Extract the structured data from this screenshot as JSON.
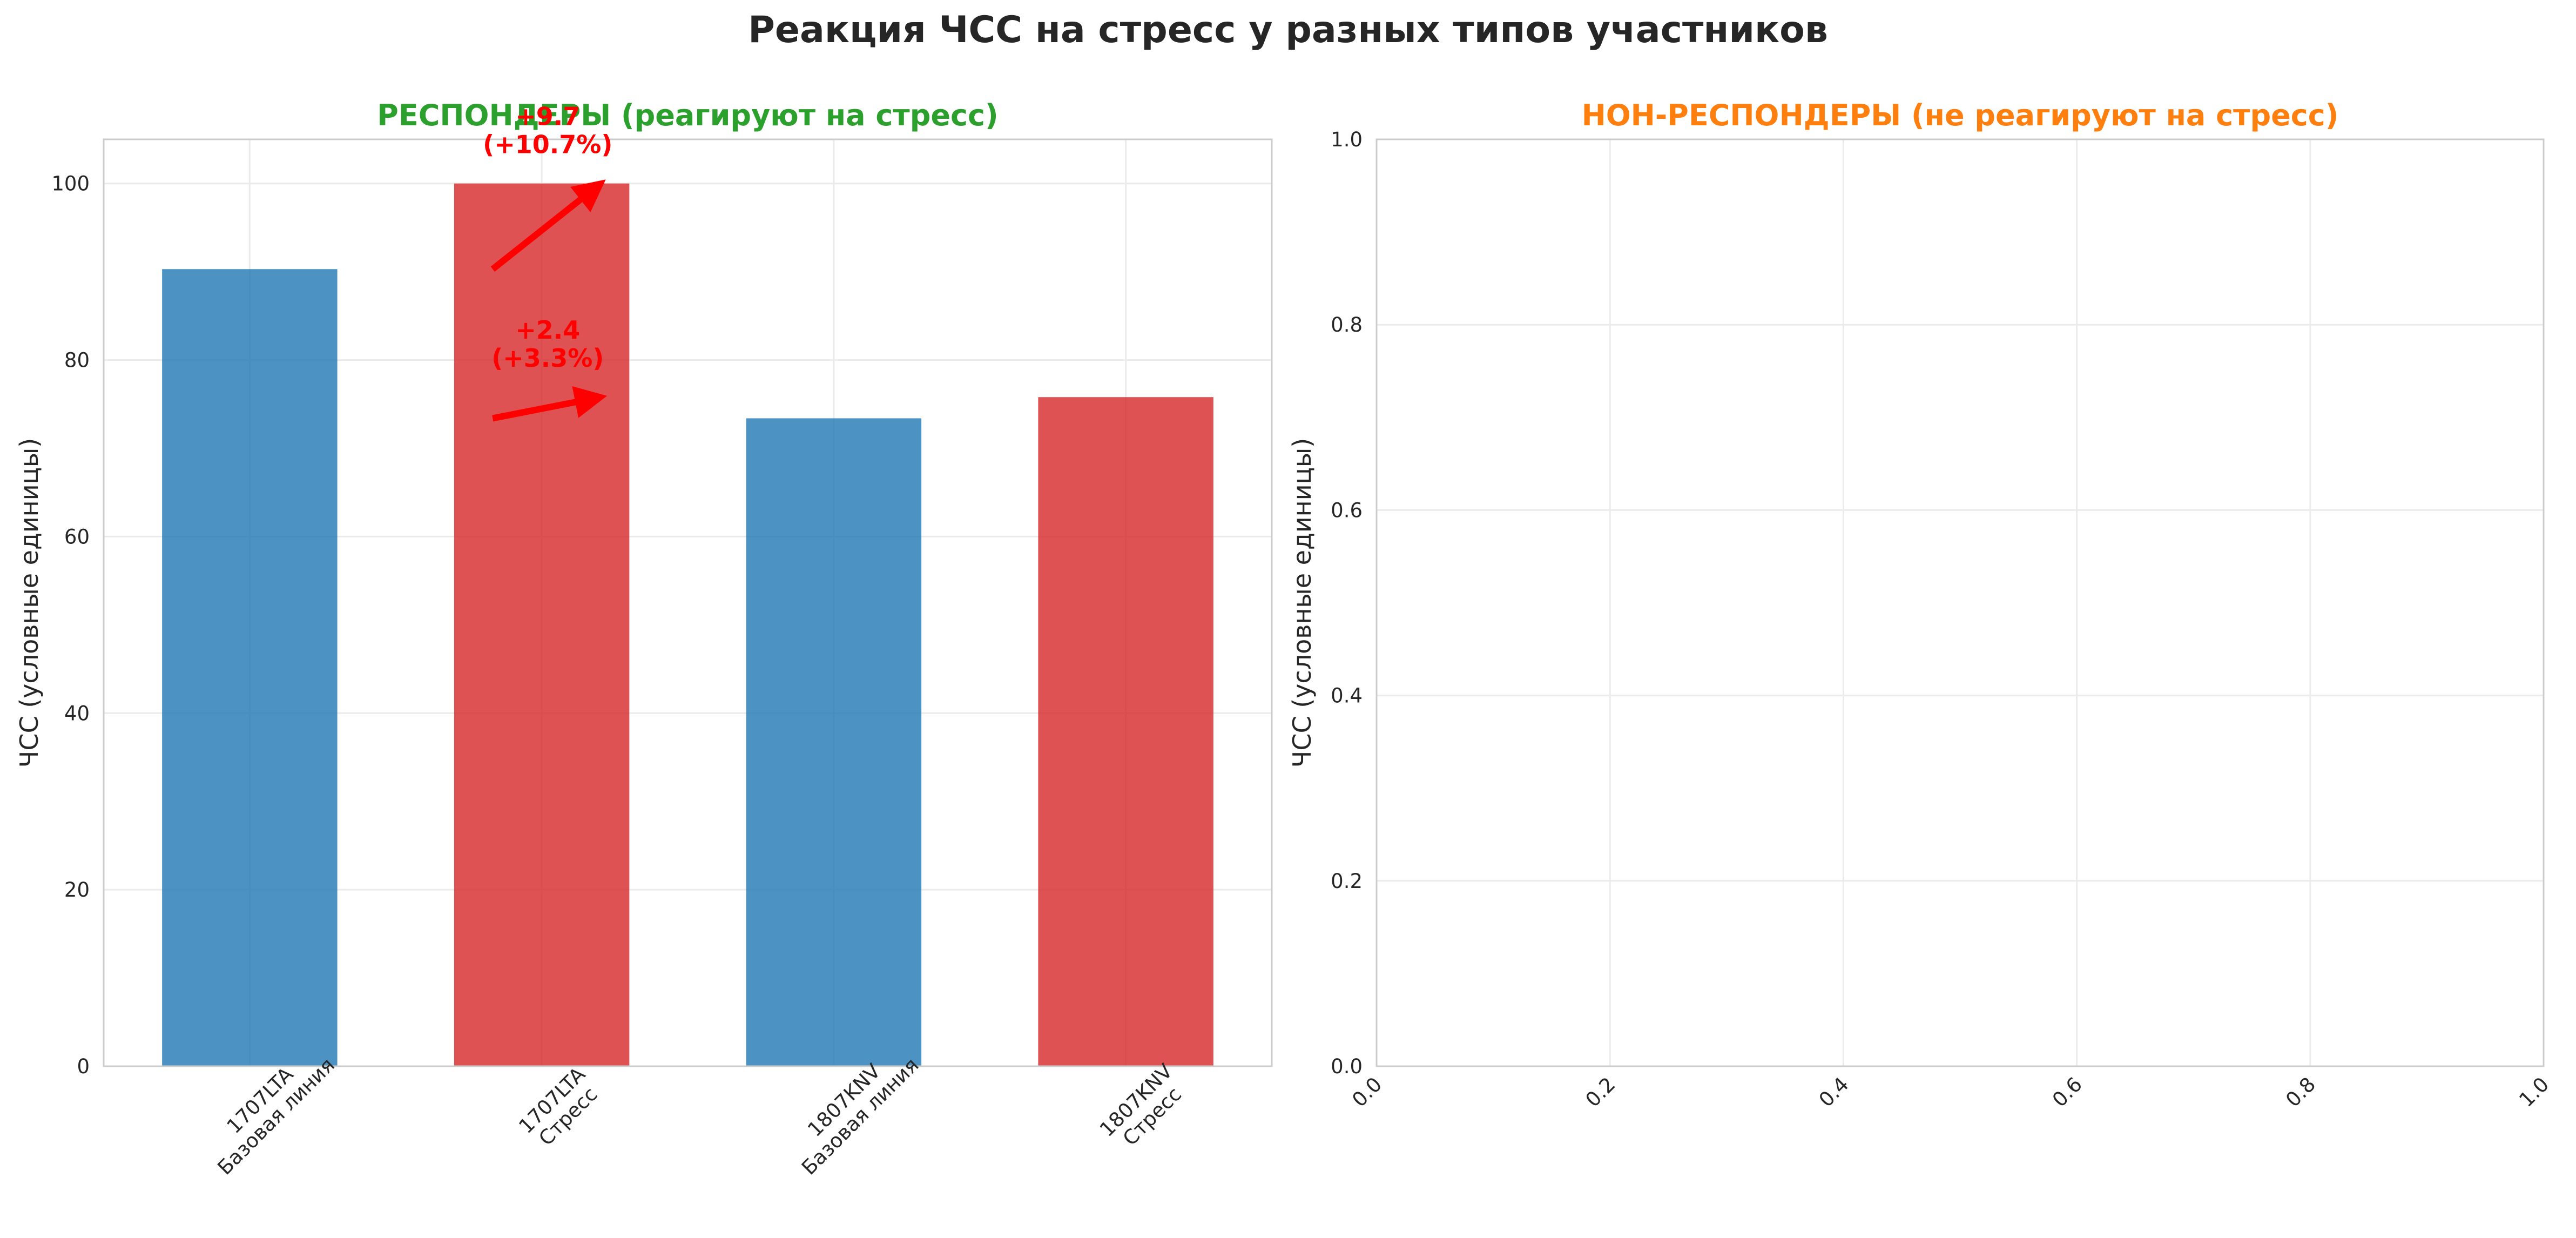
{
  "suptitle": "Реакция ЧСС на стресс у разных типов участников",
  "chart_data": [
    {
      "type": "bar",
      "title": "РЕСПОНДЕРЫ (реагируют на стресс)",
      "title_color": "#2ca02c",
      "xlabel": "",
      "ylabel": "ЧСС (условные единицы)",
      "ylim": [
        0,
        105
      ],
      "yticks": [
        0,
        20,
        40,
        60,
        80,
        100
      ],
      "grid": true,
      "categories": [
        [
          "1707LTA",
          "Базовая линия"
        ],
        [
          "1707LTA",
          "Стресс"
        ],
        [
          "1807KNV",
          "Базовая линия"
        ],
        [
          "1807KNV",
          "Стресс"
        ]
      ],
      "values": [
        90.3,
        100.0,
        73.4,
        75.8
      ],
      "bar_colors": [
        "#1f77b4",
        "#d62728",
        "#1f77b4",
        "#d62728"
      ],
      "annotations": [
        {
          "from_category": 0,
          "to_category": 1,
          "from_value": 90.3,
          "to_value": 100.0,
          "text": [
            "+9.7",
            "(+10.7%)"
          ],
          "color": "#ff0000"
        },
        {
          "from_category": 2,
          "to_category": 3,
          "from_value": 73.4,
          "to_value": 75.8,
          "text": [
            "+2.4",
            "(+3.3%)"
          ],
          "color": "#ff0000"
        }
      ]
    },
    {
      "type": "bar",
      "title": "НОН-РЕСПОНДЕРЫ (не реагируют на стресс)",
      "title_color": "#ff7f0e",
      "xlabel": "",
      "ylabel": "ЧСС (условные единицы)",
      "xlim": [
        0,
        1
      ],
      "ylim": [
        0,
        1
      ],
      "xticks": [
        "0.0",
        "0.2",
        "0.4",
        "0.6",
        "0.8",
        "1.0"
      ],
      "yticks": [
        "0.0",
        "0.2",
        "0.4",
        "0.6",
        "0.8",
        "1.0"
      ],
      "grid": true,
      "categories": [],
      "values": []
    }
  ]
}
